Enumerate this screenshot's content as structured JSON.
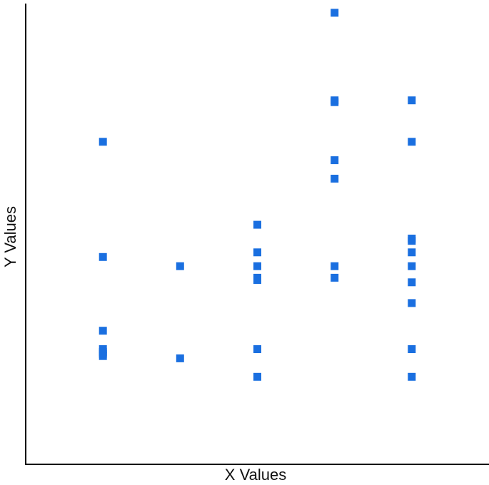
{
  "chart_data": {
    "type": "scatter",
    "title": "",
    "xlabel": "X Values",
    "ylabel": "Y Values",
    "grid": false,
    "legend": "none",
    "xlim": [
      0,
      6
    ],
    "ylim": [
      0,
      100
    ],
    "marker": "square",
    "color": "#1a6fe0",
    "points": [
      {
        "x": 1,
        "y": 70
      },
      {
        "x": 1,
        "y": 45
      },
      {
        "x": 1,
        "y": 29
      },
      {
        "x": 1,
        "y": 25
      },
      {
        "x": 1,
        "y": 24.4
      },
      {
        "x": 1,
        "y": 24
      },
      {
        "x": 1,
        "y": 23.5
      },
      {
        "x": 2,
        "y": 43
      },
      {
        "x": 2,
        "y": 23
      },
      {
        "x": 3,
        "y": 52
      },
      {
        "x": 3,
        "y": 46
      },
      {
        "x": 3,
        "y": 43
      },
      {
        "x": 3,
        "y": 40.5
      },
      {
        "x": 3,
        "y": 40
      },
      {
        "x": 3,
        "y": 25
      },
      {
        "x": 3,
        "y": 19
      },
      {
        "x": 4,
        "y": 98
      },
      {
        "x": 4,
        "y": 79
      },
      {
        "x": 4,
        "y": 78.6
      },
      {
        "x": 4,
        "y": 66
      },
      {
        "x": 4,
        "y": 62
      },
      {
        "x": 4,
        "y": 43
      },
      {
        "x": 4,
        "y": 40.5
      },
      {
        "x": 5,
        "y": 79
      },
      {
        "x": 5,
        "y": 70
      },
      {
        "x": 5,
        "y": 49
      },
      {
        "x": 5,
        "y": 48.5
      },
      {
        "x": 5,
        "y": 46
      },
      {
        "x": 5,
        "y": 43
      },
      {
        "x": 5,
        "y": 39.5
      },
      {
        "x": 5,
        "y": 35
      },
      {
        "x": 5,
        "y": 25
      },
      {
        "x": 5,
        "y": 19
      }
    ]
  }
}
